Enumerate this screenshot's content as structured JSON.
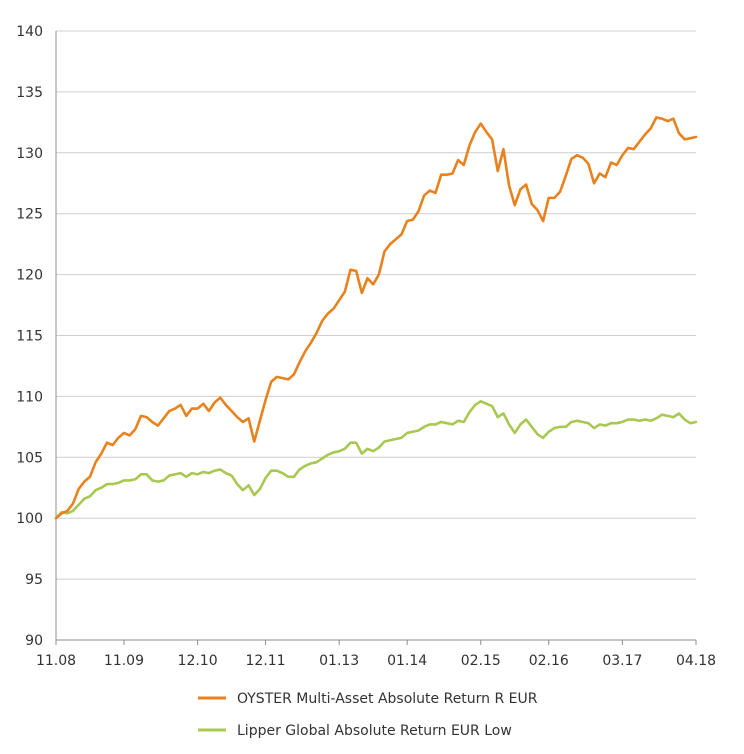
{
  "chart_data": {
    "type": "line",
    "title": "",
    "xlabel": "",
    "ylabel": "",
    "ylim": [
      90,
      140
    ],
    "y_ticks": [
      90,
      95,
      100,
      105,
      110,
      115,
      120,
      125,
      130,
      135,
      140
    ],
    "x_range": [
      "2008-11",
      "2018-04"
    ],
    "x_ticks": [
      {
        "date": "2008-11",
        "label": "11.08"
      },
      {
        "date": "2009-11",
        "label": "11.09"
      },
      {
        "date": "2010-12",
        "label": "12.10"
      },
      {
        "date": "2011-12",
        "label": "12.11"
      },
      {
        "date": "2013-01",
        "label": "01.13"
      },
      {
        "date": "2014-01",
        "label": "01.14"
      },
      {
        "date": "2015-02",
        "label": "02.15"
      },
      {
        "date": "2016-02",
        "label": "02.16"
      },
      {
        "date": "2017-03",
        "label": "03.17"
      },
      {
        "date": "2018-04",
        "label": "04.18"
      }
    ],
    "grid": {
      "horizontal": true,
      "vertical": false
    },
    "legend_position": "bottom",
    "series": [
      {
        "name": "OYSTER Multi-Asset Absolute Return R EUR",
        "color": "#E8821E",
        "points": [
          [
            "2008-11",
            100.0
          ],
          [
            "2008-12",
            100.4
          ],
          [
            "2009-01",
            100.6
          ],
          [
            "2009-02",
            101.2
          ],
          [
            "2009-03",
            102.4
          ],
          [
            "2009-04",
            103.0
          ],
          [
            "2009-05",
            103.4
          ],
          [
            "2009-06",
            104.6
          ],
          [
            "2009-07",
            105.3
          ],
          [
            "2009-08",
            106.2
          ],
          [
            "2009-09",
            106.0
          ],
          [
            "2009-10",
            106.6
          ],
          [
            "2009-11",
            107.0
          ],
          [
            "2009-12",
            106.8
          ],
          [
            "2010-01",
            107.3
          ],
          [
            "2010-02",
            108.4
          ],
          [
            "2010-03",
            108.3
          ],
          [
            "2010-04",
            107.9
          ],
          [
            "2010-05",
            107.6
          ],
          [
            "2010-06",
            108.2
          ],
          [
            "2010-07",
            108.8
          ],
          [
            "2010-08",
            109.0
          ],
          [
            "2010-09",
            109.3
          ],
          [
            "2010-10",
            108.4
          ],
          [
            "2010-11",
            109.0
          ],
          [
            "2010-12",
            109.0
          ],
          [
            "2011-01",
            109.4
          ],
          [
            "2011-02",
            108.8
          ],
          [
            "2011-03",
            109.5
          ],
          [
            "2011-04",
            109.9
          ],
          [
            "2011-05",
            109.3
          ],
          [
            "2011-06",
            108.8
          ],
          [
            "2011-07",
            108.3
          ],
          [
            "2011-08",
            107.9
          ],
          [
            "2011-09",
            108.2
          ],
          [
            "2011-10",
            106.3
          ],
          [
            "2011-11",
            108.0
          ],
          [
            "2011-12",
            109.7
          ],
          [
            "2012-01",
            111.2
          ],
          [
            "2012-02",
            111.6
          ],
          [
            "2012-03",
            111.5
          ],
          [
            "2012-04",
            111.4
          ],
          [
            "2012-05",
            111.8
          ],
          [
            "2012-06",
            112.8
          ],
          [
            "2012-07",
            113.7
          ],
          [
            "2012-08",
            114.4
          ],
          [
            "2012-09",
            115.2
          ],
          [
            "2012-10",
            116.2
          ],
          [
            "2012-11",
            116.8
          ],
          [
            "2012-12",
            117.2
          ],
          [
            "2013-01",
            117.9
          ],
          [
            "2013-02",
            118.6
          ],
          [
            "2013-03",
            120.4
          ],
          [
            "2013-04",
            120.3
          ],
          [
            "2013-05",
            118.5
          ],
          [
            "2013-06",
            119.7
          ],
          [
            "2013-07",
            119.2
          ],
          [
            "2013-08",
            120.0
          ],
          [
            "2013-09",
            121.9
          ],
          [
            "2013-10",
            122.5
          ],
          [
            "2013-11",
            122.9
          ],
          [
            "2013-12",
            123.3
          ],
          [
            "2014-01",
            124.4
          ],
          [
            "2014-02",
            124.5
          ],
          [
            "2014-03",
            125.2
          ],
          [
            "2014-04",
            126.5
          ],
          [
            "2014-05",
            126.9
          ],
          [
            "2014-06",
            126.7
          ],
          [
            "2014-07",
            128.2
          ],
          [
            "2014-08",
            128.2
          ],
          [
            "2014-09",
            128.3
          ],
          [
            "2014-10",
            129.4
          ],
          [
            "2014-11",
            129.0
          ],
          [
            "2014-12",
            130.6
          ],
          [
            "2015-01",
            131.7
          ],
          [
            "2015-02",
            132.4
          ],
          [
            "2015-03",
            131.7
          ],
          [
            "2015-04",
            131.1
          ],
          [
            "2015-05",
            128.5
          ],
          [
            "2015-06",
            130.3
          ],
          [
            "2015-07",
            127.3
          ],
          [
            "2015-08",
            125.7
          ],
          [
            "2015-09",
            127.0
          ],
          [
            "2015-10",
            127.4
          ],
          [
            "2015-11",
            125.8
          ],
          [
            "2015-12",
            125.3
          ],
          [
            "2016-01",
            124.4
          ],
          [
            "2016-02",
            126.3
          ],
          [
            "2016-03",
            126.3
          ],
          [
            "2016-04",
            126.8
          ],
          [
            "2016-05",
            128.1
          ],
          [
            "2016-06",
            129.5
          ],
          [
            "2016-07",
            129.8
          ],
          [
            "2016-08",
            129.6
          ],
          [
            "2016-09",
            129.1
          ],
          [
            "2016-10",
            127.5
          ],
          [
            "2016-11",
            128.3
          ],
          [
            "2016-12",
            128.0
          ],
          [
            "2017-01",
            129.2
          ],
          [
            "2017-02",
            129.0
          ],
          [
            "2017-03",
            129.8
          ],
          [
            "2017-04",
            130.4
          ],
          [
            "2017-05",
            130.3
          ],
          [
            "2017-06",
            130.9
          ],
          [
            "2017-07",
            131.5
          ],
          [
            "2017-08",
            132.0
          ],
          [
            "2017-09",
            132.9
          ],
          [
            "2017-10",
            132.8
          ],
          [
            "2017-11",
            132.6
          ],
          [
            "2017-12",
            132.8
          ],
          [
            "2018-01",
            131.6
          ],
          [
            "2018-02",
            131.1
          ],
          [
            "2018-03",
            131.2
          ],
          [
            "2018-04",
            131.3
          ]
        ]
      },
      {
        "name": "Lipper Global Absolute Return EUR Low",
        "color": "#A8C851",
        "points": [
          [
            "2008-11",
            100.0
          ],
          [
            "2008-12",
            100.5
          ],
          [
            "2009-01",
            100.4
          ],
          [
            "2009-02",
            100.6
          ],
          [
            "2009-03",
            101.1
          ],
          [
            "2009-04",
            101.6
          ],
          [
            "2009-05",
            101.8
          ],
          [
            "2009-06",
            102.3
          ],
          [
            "2009-07",
            102.5
          ],
          [
            "2009-08",
            102.8
          ],
          [
            "2009-09",
            102.8
          ],
          [
            "2009-10",
            102.9
          ],
          [
            "2009-11",
            103.1
          ],
          [
            "2009-12",
            103.1
          ],
          [
            "2010-01",
            103.2
          ],
          [
            "2010-02",
            103.6
          ],
          [
            "2010-03",
            103.6
          ],
          [
            "2010-04",
            103.1
          ],
          [
            "2010-05",
            103.0
          ],
          [
            "2010-06",
            103.1
          ],
          [
            "2010-07",
            103.5
          ],
          [
            "2010-08",
            103.6
          ],
          [
            "2010-09",
            103.7
          ],
          [
            "2010-10",
            103.4
          ],
          [
            "2010-11",
            103.7
          ],
          [
            "2010-12",
            103.6
          ],
          [
            "2011-01",
            103.8
          ],
          [
            "2011-02",
            103.7
          ],
          [
            "2011-03",
            103.9
          ],
          [
            "2011-04",
            104.0
          ],
          [
            "2011-05",
            103.7
          ],
          [
            "2011-06",
            103.5
          ],
          [
            "2011-07",
            102.8
          ],
          [
            "2011-08",
            102.3
          ],
          [
            "2011-09",
            102.7
          ],
          [
            "2011-10",
            101.9
          ],
          [
            "2011-11",
            102.4
          ],
          [
            "2011-12",
            103.3
          ],
          [
            "2012-01",
            103.9
          ],
          [
            "2012-02",
            103.9
          ],
          [
            "2012-03",
            103.7
          ],
          [
            "2012-04",
            103.4
          ],
          [
            "2012-05",
            103.4
          ],
          [
            "2012-06",
            104.0
          ],
          [
            "2012-07",
            104.3
          ],
          [
            "2012-08",
            104.5
          ],
          [
            "2012-09",
            104.6
          ],
          [
            "2012-10",
            104.9
          ],
          [
            "2012-11",
            105.2
          ],
          [
            "2012-12",
            105.4
          ],
          [
            "2013-01",
            105.5
          ],
          [
            "2013-02",
            105.7
          ],
          [
            "2013-03",
            106.2
          ],
          [
            "2013-04",
            106.2
          ],
          [
            "2013-05",
            105.3
          ],
          [
            "2013-06",
            105.7
          ],
          [
            "2013-07",
            105.5
          ],
          [
            "2013-08",
            105.8
          ],
          [
            "2013-09",
            106.3
          ],
          [
            "2013-10",
            106.4
          ],
          [
            "2013-11",
            106.5
          ],
          [
            "2013-12",
            106.6
          ],
          [
            "2014-01",
            107.0
          ],
          [
            "2014-02",
            107.1
          ],
          [
            "2014-03",
            107.2
          ],
          [
            "2014-04",
            107.5
          ],
          [
            "2014-05",
            107.7
          ],
          [
            "2014-06",
            107.7
          ],
          [
            "2014-07",
            107.9
          ],
          [
            "2014-08",
            107.8
          ],
          [
            "2014-09",
            107.7
          ],
          [
            "2014-10",
            108.0
          ],
          [
            "2014-11",
            107.9
          ],
          [
            "2014-12",
            108.7
          ],
          [
            "2015-01",
            109.3
          ],
          [
            "2015-02",
            109.6
          ],
          [
            "2015-03",
            109.4
          ],
          [
            "2015-04",
            109.2
          ],
          [
            "2015-05",
            108.3
          ],
          [
            "2015-06",
            108.6
          ],
          [
            "2015-07",
            107.7
          ],
          [
            "2015-08",
            107.0
          ],
          [
            "2015-09",
            107.7
          ],
          [
            "2015-10",
            108.1
          ],
          [
            "2015-11",
            107.5
          ],
          [
            "2015-12",
            106.9
          ],
          [
            "2016-01",
            106.6
          ],
          [
            "2016-02",
            107.1
          ],
          [
            "2016-03",
            107.4
          ],
          [
            "2016-04",
            107.5
          ],
          [
            "2016-05",
            107.5
          ],
          [
            "2016-06",
            107.9
          ],
          [
            "2016-07",
            108.0
          ],
          [
            "2016-08",
            107.9
          ],
          [
            "2016-09",
            107.8
          ],
          [
            "2016-10",
            107.4
          ],
          [
            "2016-11",
            107.7
          ],
          [
            "2016-12",
            107.6
          ],
          [
            "2017-01",
            107.8
          ],
          [
            "2017-02",
            107.8
          ],
          [
            "2017-03",
            107.9
          ],
          [
            "2017-04",
            108.1
          ],
          [
            "2017-05",
            108.1
          ],
          [
            "2017-06",
            108.0
          ],
          [
            "2017-07",
            108.1
          ],
          [
            "2017-08",
            108.0
          ],
          [
            "2017-09",
            108.2
          ],
          [
            "2017-10",
            108.5
          ],
          [
            "2017-11",
            108.4
          ],
          [
            "2017-12",
            108.3
          ],
          [
            "2018-01",
            108.6
          ],
          [
            "2018-02",
            108.1
          ],
          [
            "2018-03",
            107.8
          ],
          [
            "2018-04",
            107.9
          ]
        ]
      }
    ]
  }
}
